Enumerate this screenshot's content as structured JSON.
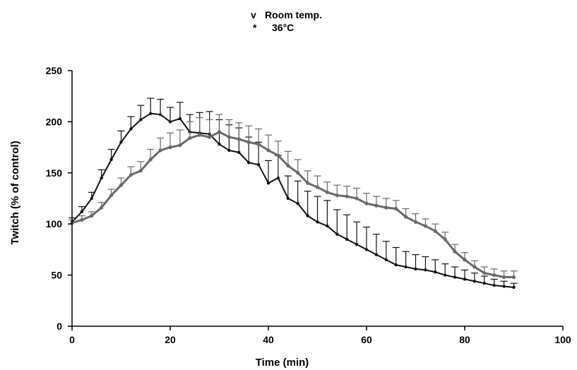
{
  "chart_data": {
    "type": "line",
    "title": "",
    "xlabel": "Time (min)",
    "ylabel": "Twitch (% of control)",
    "xlim": [
      0,
      100
    ],
    "ylim": [
      0,
      250
    ],
    "x_ticks": [
      0,
      20,
      40,
      60,
      80,
      100
    ],
    "y_ticks": [
      0,
      50,
      100,
      150,
      200,
      250
    ],
    "grid": false,
    "legend": {
      "placement": "top-center",
      "entries": [
        {
          "marker": "v",
          "label": "Room temp."
        },
        {
          "marker": "*",
          "label": "36°C"
        }
      ]
    },
    "series": [
      {
        "color": "#111111",
        "x": [
          0,
          2,
          4,
          6,
          8,
          10,
          12,
          14,
          16,
          18,
          20,
          22,
          24,
          26,
          28,
          30,
          32,
          34,
          36,
          38,
          40,
          42,
          44,
          46,
          48,
          50,
          52,
          54,
          56,
          58,
          60,
          62,
          64,
          66,
          68,
          70,
          72,
          74,
          76,
          78,
          80,
          82,
          84,
          86,
          88,
          90
        ],
        "y": [
          102,
          112,
          125,
          145,
          163,
          180,
          193,
          202,
          208,
          207,
          200,
          203,
          190,
          189,
          188,
          178,
          172,
          170,
          160,
          158,
          140,
          145,
          125,
          120,
          108,
          102,
          98,
          90,
          85,
          80,
          75,
          70,
          65,
          60,
          58,
          56,
          55,
          53,
          50,
          48,
          46,
          44,
          42,
          40,
          39,
          38
        ],
        "error": [
          4,
          5,
          6,
          8,
          10,
          11,
          12,
          14,
          15,
          15,
          14,
          16,
          17,
          20,
          22,
          24,
          25,
          24,
          25,
          22,
          22,
          22,
          22,
          22,
          24,
          25,
          25,
          24,
          24,
          22,
          22,
          20,
          18,
          17,
          15,
          14,
          13,
          12,
          11,
          10,
          9,
          8,
          7,
          6,
          5,
          4
        ]
      },
      {
        "color": "#6a6a6a",
        "x": [
          0,
          2,
          4,
          6,
          8,
          10,
          12,
          14,
          16,
          18,
          20,
          22,
          24,
          26,
          28,
          30,
          32,
          34,
          36,
          38,
          40,
          42,
          44,
          46,
          48,
          50,
          52,
          54,
          56,
          58,
          60,
          62,
          64,
          66,
          68,
          70,
          72,
          74,
          76,
          78,
          80,
          82,
          84,
          86,
          88,
          90
        ],
        "y": [
          101,
          104,
          108,
          116,
          128,
          138,
          148,
          152,
          163,
          172,
          175,
          177,
          184,
          187,
          185,
          190,
          185,
          183,
          180,
          178,
          172,
          167,
          157,
          150,
          140,
          136,
          131,
          128,
          127,
          125,
          120,
          118,
          116,
          115,
          107,
          102,
          98,
          93,
          85,
          73,
          65,
          58,
          52,
          50,
          48,
          48
        ],
        "error": [
          3,
          4,
          4,
          5,
          6,
          7,
          8,
          9,
          10,
          12,
          14,
          15,
          16,
          17,
          17,
          17,
          17,
          16,
          16,
          15,
          15,
          14,
          14,
          13,
          12,
          11,
          10,
          10,
          10,
          10,
          10,
          9,
          9,
          8,
          8,
          8,
          7,
          7,
          7,
          7,
          7,
          6,
          6,
          6,
          6,
          6
        ]
      }
    ]
  }
}
